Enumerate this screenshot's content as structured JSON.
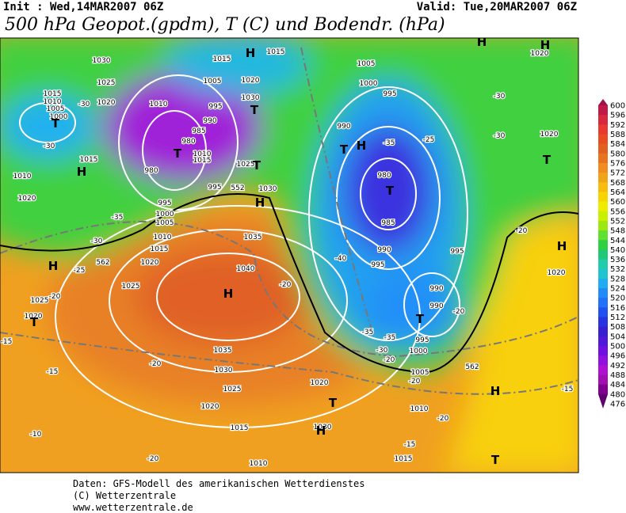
{
  "header": {
    "init": "Init : Wed,14MAR2007 06Z",
    "valid": "Valid: Tue,20MAR2007 06Z",
    "title": "500 hPa Geopot.(gpdm), T (C) und Bodendr. (hPa)"
  },
  "map": {
    "labels": [
      "1030",
      "1015",
      "H",
      "1015",
      "1005",
      "H",
      "H",
      "1020",
      "1025",
      "1005",
      "1020",
      "1000",
      "1015",
      "1010",
      "1005",
      "1000",
      "1020",
      "1010",
      "995",
      "1030",
      "995",
      "-30",
      "-30",
      "990",
      "985",
      "980",
      "T",
      "T",
      "T",
      "990",
      "T",
      "H",
      "-35",
      "-25",
      "-30",
      "1015",
      "H",
      "1010",
      "1015",
      "1025",
      "T",
      "980",
      "980",
      "T",
      "1020",
      "-30",
      "T",
      "1010",
      "1020",
      "995",
      "1030",
      "H",
      "995",
      "1000",
      "1005",
      "1010",
      "1015",
      "-35",
      "-30",
      "985",
      "-20",
      "H",
      "1020",
      "H",
      "-25",
      "1020",
      "1035",
      "1040",
      "H",
      "990",
      "995",
      "995",
      "-40",
      "990",
      "990",
      "-20",
      "T",
      "1025",
      "1025",
      "-20",
      "-20",
      "1020",
      "T",
      "-15",
      "1035",
      "-35",
      "-35",
      "995",
      "1000",
      "-30",
      "-20",
      "-20",
      "-15",
      "1030",
      "1020",
      "1005",
      "-20",
      "H",
      "-15",
      "1025",
      "T",
      "1010",
      "-20",
      "1020",
      "-10",
      "1015",
      "1030",
      "H",
      "-15",
      "1015",
      "-20",
      "1010",
      "T",
      "562",
      "562",
      "552"
    ]
  },
  "colorbar": {
    "values": [
      600,
      596,
      592,
      588,
      584,
      580,
      576,
      572,
      568,
      564,
      560,
      556,
      552,
      548,
      544,
      540,
      536,
      532,
      528,
      524,
      520,
      516,
      512,
      508,
      504,
      500,
      496,
      492,
      488,
      484,
      480,
      476
    ],
    "colors": [
      "#a0104a",
      "#c01848",
      "#d82840",
      "#e83a30",
      "#e84c20",
      "#e06020",
      "#e87420",
      "#f08c20",
      "#f0a418",
      "#f8bc10",
      "#f8d400",
      "#f0ec00",
      "#c8f000",
      "#9ce810",
      "#60e030",
      "#30d040",
      "#20c878",
      "#20ccac",
      "#20c4d0",
      "#20acf0",
      "#208cf8",
      "#2070f8",
      "#2050f0",
      "#2834e0",
      "#3820d0",
      "#5018d8",
      "#7010e0",
      "#9010e0",
      "#b010d0",
      "#a010b0",
      "#800090",
      "#600070"
    ]
  },
  "footer": {
    "lines": [
      "Daten: GFS-Modell des amerikanischen Wetterdienstes",
      "(C) Wetterzentrale",
      "www.wetterzentrale.de"
    ]
  }
}
